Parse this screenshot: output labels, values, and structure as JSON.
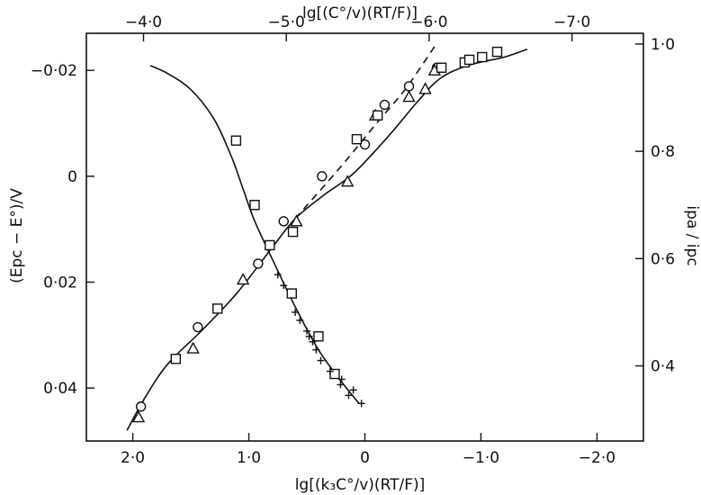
{
  "chart_data": {
    "type": "scatter",
    "title": "",
    "axes": {
      "bottom": {
        "label": "lg[(k₃C°/v)(RT/F)]",
        "range": [
          2.4,
          -2.4
        ],
        "ticks": [
          {
            "value": 2.0,
            "label": "2·0"
          },
          {
            "value": 1.0,
            "label": "1·0"
          },
          {
            "value": 0.0,
            "label": "0"
          },
          {
            "value": -1.0,
            "label": "−1·0"
          },
          {
            "value": -2.0,
            "label": "−2·0"
          }
        ]
      },
      "top": {
        "label": "lg[(C°/v)(RT/F)]",
        "range": [
          -3.6,
          -7.5
        ],
        "ticks": [
          {
            "value": -4.0,
            "label": "−4·0"
          },
          {
            "value": -5.0,
            "label": "−5·0"
          },
          {
            "value": -6.0,
            "label": "−6·0"
          },
          {
            "value": -7.0,
            "label": "−7·0"
          }
        ]
      },
      "left": {
        "label": "(Epc − E°)/V",
        "range": [
          0.05,
          -0.027
        ],
        "ticks": [
          {
            "value": -0.02,
            "label": "−0·02"
          },
          {
            "value": 0.0,
            "label": "0"
          },
          {
            "value": 0.02,
            "label": "0·02"
          },
          {
            "value": 0.04,
            "label": "0·04"
          }
        ]
      },
      "right": {
        "label": "ipa / ipc",
        "range": [
          0.26,
          1.02
        ],
        "ticks": [
          {
            "value": 0.4,
            "label": "0·4"
          },
          {
            "value": 0.6,
            "label": "0·6"
          },
          {
            "value": 0.8,
            "label": "0·8"
          },
          {
            "value": 1.0,
            "label": "1·0"
          }
        ]
      }
    },
    "curves": [
      {
        "style": "solid",
        "xaxis": "bottom",
        "yaxis": "left",
        "points": [
          [
            2.05,
            0.048
          ],
          [
            1.9,
            0.042
          ],
          [
            1.7,
            0.0355
          ],
          [
            1.4,
            0.029
          ],
          [
            1.1,
            0.022
          ],
          [
            0.8,
            0.0135
          ],
          [
            0.6,
            0.008
          ],
          [
            0.35,
            0.0035
          ],
          [
            0.1,
            -0.0005
          ],
          [
            -0.2,
            -0.0075
          ],
          [
            -0.45,
            -0.014
          ],
          [
            -0.65,
            -0.0185
          ],
          [
            -0.9,
            -0.021
          ],
          [
            -1.2,
            -0.0225
          ],
          [
            -1.4,
            -0.024
          ]
        ]
      },
      {
        "style": "dashed",
        "xaxis": "bottom",
        "yaxis": "left",
        "points": [
          [
            0.6,
            0.008
          ],
          [
            0.2,
            -0.002
          ],
          [
            -0.1,
            -0.01
          ],
          [
            -0.35,
            -0.0165
          ],
          [
            -0.6,
            -0.0245
          ]
        ]
      },
      {
        "style": "solid",
        "xaxis": "bottom",
        "yaxis": "right",
        "points": [
          [
            0.05,
            0.33
          ],
          [
            0.2,
            0.37
          ],
          [
            0.4,
            0.43
          ],
          [
            0.6,
            0.51
          ],
          [
            0.8,
            0.6
          ],
          [
            0.95,
            0.67
          ],
          [
            1.05,
            0.73
          ],
          [
            1.15,
            0.79
          ],
          [
            1.3,
            0.86
          ],
          [
            1.5,
            0.915
          ],
          [
            1.7,
            0.945
          ],
          [
            1.85,
            0.96
          ]
        ]
      }
    ],
    "series": [
      {
        "marker": "circle",
        "xaxis": "bottom",
        "yaxis": "left",
        "points": [
          [
            1.93,
            0.0435
          ],
          [
            1.44,
            0.0285
          ],
          [
            0.92,
            0.0165
          ],
          [
            0.7,
            0.0085
          ],
          [
            0.37,
            0.0
          ],
          [
            0.0,
            -0.006
          ],
          [
            -0.17,
            -0.0135
          ],
          [
            -0.38,
            -0.017
          ],
          [
            -0.62,
            -0.0205
          ]
        ]
      },
      {
        "marker": "triangle",
        "xaxis": "bottom",
        "yaxis": "left",
        "points": [
          [
            1.95,
            0.0455
          ],
          [
            1.48,
            0.0325
          ],
          [
            1.05,
            0.0195
          ],
          [
            0.59,
            0.0085
          ],
          [
            0.15,
            0.001
          ],
          [
            -0.09,
            -0.0115
          ],
          [
            -0.38,
            -0.015
          ],
          [
            -0.52,
            -0.0165
          ],
          [
            -0.6,
            -0.02
          ]
        ]
      },
      {
        "marker": "square",
        "xaxis": "bottom",
        "yaxis": "left",
        "points": [
          [
            1.63,
            0.0345
          ],
          [
            1.27,
            0.025
          ],
          [
            0.62,
            0.0105
          ],
          [
            0.07,
            -0.007
          ],
          [
            -0.11,
            -0.0115
          ],
          [
            -0.66,
            -0.0205
          ],
          [
            -0.86,
            -0.0215
          ],
          [
            -0.9,
            -0.022
          ],
          [
            -1.01,
            -0.0225
          ],
          [
            -1.14,
            -0.0235
          ]
        ]
      },
      {
        "marker": "square",
        "xaxis": "bottom",
        "yaxis": "right",
        "points": [
          [
            0.26,
            0.385
          ],
          [
            0.4,
            0.455
          ],
          [
            0.63,
            0.535
          ],
          [
            0.82,
            0.625
          ],
          [
            0.95,
            0.7
          ],
          [
            1.11,
            0.82
          ]
        ]
      },
      {
        "marker": "cross",
        "xaxis": "bottom",
        "yaxis": "right",
        "points": [
          [
            0.03,
            0.33
          ],
          [
            0.14,
            0.345
          ],
          [
            0.1,
            0.355
          ],
          [
            0.21,
            0.365
          ],
          [
            0.2,
            0.375
          ],
          [
            0.3,
            0.39
          ],
          [
            0.38,
            0.41
          ],
          [
            0.42,
            0.43
          ],
          [
            0.45,
            0.445
          ],
          [
            0.48,
            0.455
          ],
          [
            0.5,
            0.465
          ],
          [
            0.56,
            0.485
          ],
          [
            0.6,
            0.5
          ],
          [
            0.7,
            0.55
          ],
          [
            0.75,
            0.57
          ]
        ]
      }
    ]
  }
}
